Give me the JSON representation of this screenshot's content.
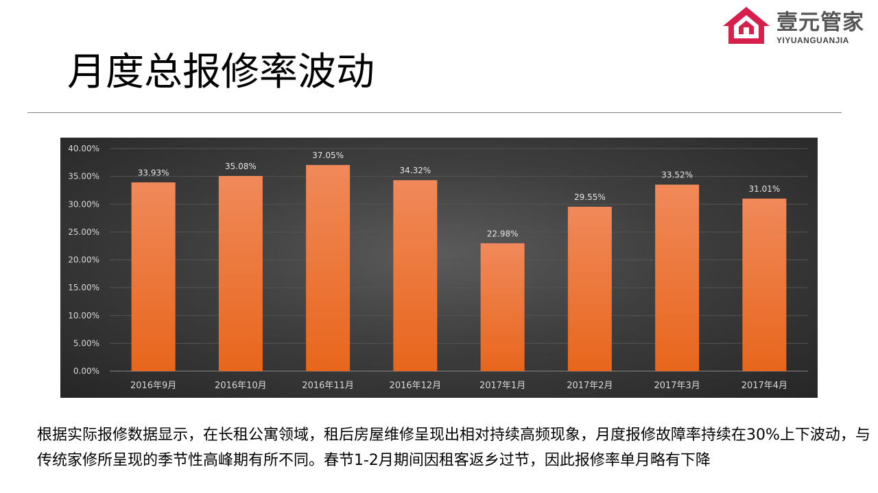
{
  "brand": {
    "name": "壹元管家",
    "subtitle": "YIYUANGUANJIA",
    "icon": "house-logo-icon",
    "color": "#d81e4a"
  },
  "page": {
    "title": "月度总报修率波动",
    "description": "根据实际报修数据显示，在长租公寓领域，租后房屋维修呈现出相对持续高频现象，月度报修故障率持续在30%上下波动，与传统家修所呈现的季节性高峰期有所不同。春节1-2月期间因租客返乡过节，因此报修率单月略有下降"
  },
  "chart_data": {
    "type": "bar",
    "title": "",
    "xlabel": "",
    "ylabel": "",
    "categories": [
      "2016年9月",
      "2016年10月",
      "2016年11月",
      "2016年12月",
      "2017年1月",
      "2017年2月",
      "2017年3月",
      "2017年4月"
    ],
    "values": [
      33.93,
      35.08,
      37.05,
      34.32,
      22.98,
      29.55,
      33.52,
      31.01
    ],
    "value_labels": [
      "33.93%",
      "35.08%",
      "37.05%",
      "34.32%",
      "22.98%",
      "29.55%",
      "33.52%",
      "31.01%"
    ],
    "ylim": [
      0,
      40
    ],
    "yticks": [
      "0.00%",
      "5.00%",
      "10.00%",
      "15.00%",
      "20.00%",
      "25.00%",
      "30.00%",
      "35.00%",
      "40.00%"
    ],
    "grid": true,
    "legend": "none",
    "bar_color_top": "#f0895a",
    "bar_color_bottom": "#e8661c",
    "background": "#3a3a3a"
  }
}
